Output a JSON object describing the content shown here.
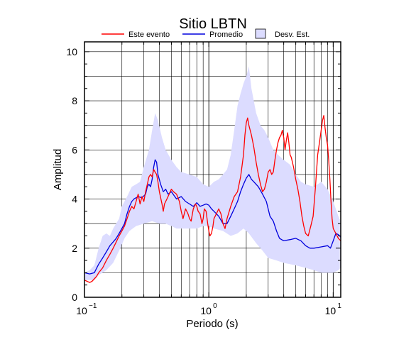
{
  "chart_data": {
    "type": "line",
    "title": "Sitio LBTN",
    "xlabel": "Periodo (s)",
    "ylabel": "Amplitud",
    "xscale": "log",
    "xlim": [
      0.1,
      11.5
    ],
    "ylim": [
      0,
      10.4
    ],
    "x_ticks": [
      {
        "value": 0.1,
        "base": "10",
        "exp": "−1"
      },
      {
        "value": 1,
        "base": "10",
        "exp": "0"
      },
      {
        "value": 10,
        "base": "10",
        "exp": "1"
      }
    ],
    "y_ticks": [
      0,
      2,
      4,
      6,
      8,
      10
    ],
    "grid": true,
    "legend_position": "top",
    "legend": [
      {
        "label": "Este evento",
        "kind": "line",
        "color": "#ff0000"
      },
      {
        "label": "Promedio",
        "kind": "line",
        "color": "#0000dd"
      },
      {
        "label": "Desv. Est.",
        "kind": "box",
        "color": "#dcdcff"
      }
    ],
    "std_band": {
      "name": "Desv. Est.",
      "color": "#dcdcff",
      "upper": [
        [
          0.1,
          1.0
        ],
        [
          0.11,
          1.1
        ],
        [
          0.12,
          1.3
        ],
        [
          0.13,
          2.0
        ],
        [
          0.14,
          2.5
        ],
        [
          0.15,
          2.6
        ],
        [
          0.16,
          2.5
        ],
        [
          0.17,
          2.8
        ],
        [
          0.19,
          3.2
        ],
        [
          0.2,
          3.7
        ],
        [
          0.22,
          4.1
        ],
        [
          0.24,
          4.5
        ],
        [
          0.26,
          4.6
        ],
        [
          0.28,
          4.7
        ],
        [
          0.3,
          5.3
        ],
        [
          0.33,
          6.0
        ],
        [
          0.35,
          6.8
        ],
        [
          0.37,
          7.5
        ],
        [
          0.39,
          7.2
        ],
        [
          0.42,
          6.5
        ],
        [
          0.45,
          6.0
        ],
        [
          0.5,
          5.6
        ],
        [
          0.55,
          5.3
        ],
        [
          0.6,
          5.1
        ],
        [
          0.7,
          5.0
        ],
        [
          0.8,
          4.9
        ],
        [
          0.9,
          4.6
        ],
        [
          1.0,
          4.5
        ],
        [
          1.1,
          4.7
        ],
        [
          1.2,
          4.8
        ],
        [
          1.3,
          5.0
        ],
        [
          1.4,
          5.2
        ],
        [
          1.5,
          5.8
        ],
        [
          1.6,
          6.8
        ],
        [
          1.7,
          7.8
        ],
        [
          1.8,
          8.3
        ],
        [
          1.9,
          8.7
        ],
        [
          2.0,
          9.0
        ],
        [
          2.1,
          9.4
        ],
        [
          2.2,
          8.5
        ],
        [
          2.4,
          7.5
        ],
        [
          2.6,
          7.0
        ],
        [
          2.8,
          6.8
        ],
        [
          3.0,
          6.5
        ],
        [
          3.3,
          6.0
        ],
        [
          3.6,
          5.8
        ],
        [
          4.0,
          5.6
        ],
        [
          4.5,
          5.4
        ],
        [
          5.0,
          5.0
        ],
        [
          5.5,
          4.7
        ],
        [
          6.0,
          4.6
        ],
        [
          7.0,
          4.5
        ],
        [
          7.5,
          4.6
        ],
        [
          8.0,
          4.7
        ],
        [
          9.0,
          4.4
        ],
        [
          10.0,
          3.9
        ],
        [
          11.0,
          3.3
        ],
        [
          11.5,
          3.1
        ]
      ],
      "lower": [
        [
          0.1,
          0.7
        ],
        [
          0.12,
          0.7
        ],
        [
          0.13,
          0.9
        ],
        [
          0.15,
          1.1
        ],
        [
          0.17,
          1.4
        ],
        [
          0.19,
          1.9
        ],
        [
          0.21,
          2.4
        ],
        [
          0.23,
          2.7
        ],
        [
          0.26,
          2.9
        ],
        [
          0.3,
          3.0
        ],
        [
          0.35,
          3.1
        ],
        [
          0.4,
          3.0
        ],
        [
          0.45,
          3.0
        ],
        [
          0.5,
          2.9
        ],
        [
          0.55,
          2.8
        ],
        [
          0.6,
          2.8
        ],
        [
          0.7,
          2.8
        ],
        [
          0.8,
          2.8
        ],
        [
          0.9,
          2.9
        ],
        [
          1.0,
          2.9
        ],
        [
          1.1,
          2.8
        ],
        [
          1.3,
          2.7
        ],
        [
          1.5,
          2.5
        ],
        [
          1.7,
          2.6
        ],
        [
          1.9,
          2.8
        ],
        [
          2.1,
          2.6
        ],
        [
          2.4,
          2.2
        ],
        [
          2.7,
          1.9
        ],
        [
          3.0,
          1.6
        ],
        [
          3.5,
          1.5
        ],
        [
          4.0,
          1.4
        ],
        [
          5.0,
          1.3
        ],
        [
          6.0,
          1.2
        ],
        [
          7.0,
          1.1
        ],
        [
          8.0,
          1.0
        ],
        [
          9.0,
          1.0
        ],
        [
          10.0,
          1.0
        ],
        [
          11.0,
          1.1
        ],
        [
          11.5,
          1.2
        ]
      ]
    },
    "series": [
      {
        "name": "Promedio",
        "color": "#0000dd",
        "points": [
          [
            0.1,
            1.0
          ],
          [
            0.11,
            0.95
          ],
          [
            0.12,
            1.0
          ],
          [
            0.13,
            1.35
          ],
          [
            0.14,
            1.6
          ],
          [
            0.15,
            1.85
          ],
          [
            0.16,
            2.1
          ],
          [
            0.17,
            2.25
          ],
          [
            0.18,
            2.4
          ],
          [
            0.19,
            2.6
          ],
          [
            0.2,
            2.8
          ],
          [
            0.21,
            3.0
          ],
          [
            0.22,
            3.4
          ],
          [
            0.23,
            3.7
          ],
          [
            0.24,
            3.9
          ],
          [
            0.25,
            4.0
          ],
          [
            0.27,
            4.1
          ],
          [
            0.29,
            4.05
          ],
          [
            0.31,
            4.2
          ],
          [
            0.32,
            4.5
          ],
          [
            0.33,
            4.6
          ],
          [
            0.34,
            4.5
          ],
          [
            0.35,
            4.8
          ],
          [
            0.36,
            5.3
          ],
          [
            0.37,
            5.6
          ],
          [
            0.38,
            5.5
          ],
          [
            0.39,
            5.0
          ],
          [
            0.41,
            4.6
          ],
          [
            0.43,
            4.3
          ],
          [
            0.45,
            4.4
          ],
          [
            0.47,
            4.2
          ],
          [
            0.5,
            4.3
          ],
          [
            0.55,
            4.0
          ],
          [
            0.6,
            4.1
          ],
          [
            0.65,
            3.9
          ],
          [
            0.7,
            3.8
          ],
          [
            0.75,
            3.7
          ],
          [
            0.8,
            3.85
          ],
          [
            0.85,
            3.7
          ],
          [
            0.9,
            3.75
          ],
          [
            0.95,
            3.8
          ],
          [
            1.0,
            3.75
          ],
          [
            1.05,
            3.6
          ],
          [
            1.1,
            3.5
          ],
          [
            1.15,
            3.4
          ],
          [
            1.2,
            3.3
          ],
          [
            1.3,
            3.0
          ],
          [
            1.4,
            3.0
          ],
          [
            1.5,
            3.3
          ],
          [
            1.6,
            3.6
          ],
          [
            1.7,
            3.9
          ],
          [
            1.8,
            4.3
          ],
          [
            1.9,
            4.6
          ],
          [
            2.0,
            4.85
          ],
          [
            2.1,
            5.0
          ],
          [
            2.2,
            4.8
          ],
          [
            2.3,
            4.7
          ],
          [
            2.5,
            4.5
          ],
          [
            2.7,
            4.2
          ],
          [
            2.9,
            3.9
          ],
          [
            3.1,
            3.3
          ],
          [
            3.3,
            3.1
          ],
          [
            3.5,
            2.7
          ],
          [
            3.7,
            2.4
          ],
          [
            4.0,
            2.3
          ],
          [
            4.5,
            2.35
          ],
          [
            5.0,
            2.4
          ],
          [
            5.5,
            2.3
          ],
          [
            6.0,
            2.1
          ],
          [
            6.5,
            2.0
          ],
          [
            7.0,
            2.0
          ],
          [
            8.0,
            2.05
          ],
          [
            9.0,
            2.1
          ],
          [
            9.5,
            2.0
          ],
          [
            10.0,
            2.3
          ],
          [
            10.5,
            2.6
          ],
          [
            11.0,
            2.55
          ],
          [
            11.5,
            2.45
          ]
        ]
      },
      {
        "name": "Este evento",
        "color": "#ff0000",
        "points": [
          [
            0.1,
            0.7
          ],
          [
            0.105,
            0.65
          ],
          [
            0.11,
            0.6
          ],
          [
            0.115,
            0.65
          ],
          [
            0.12,
            0.75
          ],
          [
            0.125,
            0.85
          ],
          [
            0.13,
            1.0
          ],
          [
            0.14,
            1.2
          ],
          [
            0.15,
            1.5
          ],
          [
            0.16,
            1.75
          ],
          [
            0.17,
            2.0
          ],
          [
            0.18,
            2.25
          ],
          [
            0.19,
            2.5
          ],
          [
            0.2,
            2.7
          ],
          [
            0.21,
            2.9
          ],
          [
            0.22,
            3.2
          ],
          [
            0.23,
            3.5
          ],
          [
            0.24,
            3.7
          ],
          [
            0.25,
            3.6
          ],
          [
            0.26,
            3.9
          ],
          [
            0.27,
            4.2
          ],
          [
            0.28,
            3.8
          ],
          [
            0.29,
            4.1
          ],
          [
            0.3,
            3.9
          ],
          [
            0.31,
            4.3
          ],
          [
            0.32,
            4.6
          ],
          [
            0.33,
            4.9
          ],
          [
            0.34,
            5.0
          ],
          [
            0.35,
            4.9
          ],
          [
            0.36,
            5.2
          ],
          [
            0.37,
            5.1
          ],
          [
            0.38,
            5.0
          ],
          [
            0.39,
            4.7
          ],
          [
            0.4,
            4.3
          ],
          [
            0.42,
            3.8
          ],
          [
            0.43,
            3.5
          ],
          [
            0.44,
            3.8
          ],
          [
            0.46,
            4.0
          ],
          [
            0.48,
            4.2
          ],
          [
            0.5,
            4.4
          ],
          [
            0.52,
            4.3
          ],
          [
            0.55,
            4.2
          ],
          [
            0.58,
            3.9
          ],
          [
            0.6,
            3.5
          ],
          [
            0.62,
            3.2
          ],
          [
            0.65,
            3.6
          ],
          [
            0.68,
            3.4
          ],
          [
            0.7,
            3.2
          ],
          [
            0.72,
            3.1
          ],
          [
            0.75,
            3.6
          ],
          [
            0.78,
            3.8
          ],
          [
            0.8,
            3.7
          ],
          [
            0.82,
            3.5
          ],
          [
            0.85,
            3.4
          ],
          [
            0.88,
            3.0
          ],
          [
            0.9,
            3.2
          ],
          [
            0.92,
            3.6
          ],
          [
            0.95,
            3.5
          ],
          [
            0.98,
            3.0
          ],
          [
            1.0,
            2.7
          ],
          [
            1.02,
            2.5
          ],
          [
            1.05,
            2.6
          ],
          [
            1.08,
            2.9
          ],
          [
            1.1,
            3.2
          ],
          [
            1.15,
            3.4
          ],
          [
            1.2,
            3.6
          ],
          [
            1.25,
            3.4
          ],
          [
            1.3,
            3.0
          ],
          [
            1.35,
            2.8
          ],
          [
            1.4,
            3.2
          ],
          [
            1.5,
            3.7
          ],
          [
            1.6,
            4.1
          ],
          [
            1.7,
            4.3
          ],
          [
            1.8,
            4.9
          ],
          [
            1.9,
            5.8
          ],
          [
            1.95,
            6.6
          ],
          [
            2.0,
            7.1
          ],
          [
            2.05,
            7.3
          ],
          [
            2.1,
            7.0
          ],
          [
            2.15,
            6.8
          ],
          [
            2.2,
            6.6
          ],
          [
            2.3,
            6.1
          ],
          [
            2.4,
            5.5
          ],
          [
            2.5,
            5.0
          ],
          [
            2.6,
            4.6
          ],
          [
            2.7,
            4.3
          ],
          [
            2.8,
            4.4
          ],
          [
            2.9,
            4.7
          ],
          [
            3.0,
            5.1
          ],
          [
            3.1,
            5.2
          ],
          [
            3.2,
            5.0
          ],
          [
            3.3,
            5.1
          ],
          [
            3.4,
            5.6
          ],
          [
            3.5,
            6.0
          ],
          [
            3.6,
            6.3
          ],
          [
            3.7,
            6.5
          ],
          [
            3.8,
            6.6
          ],
          [
            3.9,
            6.8
          ],
          [
            4.0,
            6.5
          ],
          [
            4.1,
            6.0
          ],
          [
            4.2,
            6.4
          ],
          [
            4.3,
            6.7
          ],
          [
            4.4,
            6.3
          ],
          [
            4.5,
            5.8
          ],
          [
            4.6,
            5.7
          ],
          [
            4.8,
            5.3
          ],
          [
            5.0,
            4.8
          ],
          [
            5.2,
            4.4
          ],
          [
            5.4,
            3.9
          ],
          [
            5.6,
            3.3
          ],
          [
            5.8,
            2.9
          ],
          [
            6.0,
            2.6
          ],
          [
            6.3,
            2.5
          ],
          [
            6.6,
            2.9
          ],
          [
            6.9,
            3.3
          ],
          [
            7.2,
            4.5
          ],
          [
            7.5,
            5.8
          ],
          [
            7.8,
            6.4
          ],
          [
            8.0,
            6.8
          ],
          [
            8.2,
            7.2
          ],
          [
            8.4,
            7.4
          ],
          [
            8.6,
            6.9
          ],
          [
            8.8,
            6.5
          ],
          [
            9.0,
            6.2
          ],
          [
            9.2,
            5.6
          ],
          [
            9.4,
            4.8
          ],
          [
            9.6,
            3.9
          ],
          [
            9.8,
            3.2
          ],
          [
            10.0,
            2.8
          ],
          [
            10.5,
            2.6
          ],
          [
            11.0,
            2.4
          ],
          [
            11.5,
            2.3
          ]
        ]
      }
    ]
  }
}
